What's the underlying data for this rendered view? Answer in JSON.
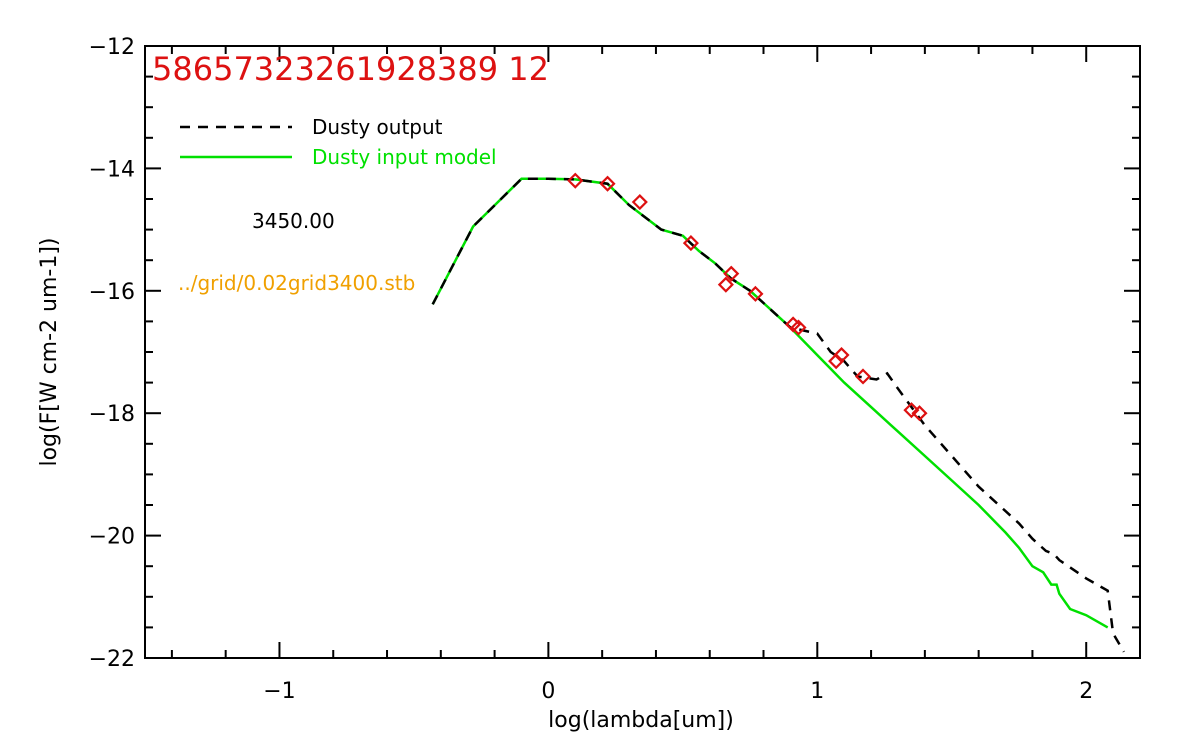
{
  "chart_data": {
    "type": "line",
    "title": "58657323261928389 12",
    "xlabel": "log(lambda[um])",
    "ylabel": "log(F[W cm-2 um-1])",
    "xlim": [
      -1.5,
      2.2
    ],
    "ylim": [
      -22,
      -12
    ],
    "xticks": [
      -1,
      0,
      1,
      2
    ],
    "yticks": [
      -22,
      -20,
      -18,
      -16,
      -14,
      -12
    ],
    "x_tick_labels": [
      "−1",
      "0",
      "1",
      "2"
    ],
    "y_tick_labels": [
      "−22",
      "−20",
      "−18",
      "−16",
      "−14",
      "−12"
    ],
    "colors": {
      "dusty_output": "#000000",
      "dusty_input": "#00e000",
      "observed": "#dd1111",
      "id_text": "#dd1111",
      "file_text": "#f0a000",
      "temp_text": "#000000"
    },
    "series": [
      {
        "name": "Dusty output",
        "style": "dashed",
        "color": "#000000",
        "x": [
          -0.43,
          -0.28,
          -0.1,
          0.0,
          0.1,
          0.22,
          0.3,
          0.42,
          0.5,
          0.56,
          0.62,
          0.68,
          0.75,
          0.8,
          0.85,
          0.9,
          1.0,
          1.05,
          1.1,
          1.15,
          1.22,
          1.26,
          1.3,
          1.4,
          1.5,
          1.6,
          1.7,
          1.75,
          1.8,
          1.85,
          1.88,
          1.9,
          2.0,
          2.08,
          2.1,
          2.14
        ],
        "y": [
          -16.22,
          -14.95,
          -14.17,
          -14.17,
          -14.18,
          -14.25,
          -14.6,
          -15.0,
          -15.1,
          -15.35,
          -15.55,
          -15.8,
          -16.0,
          -16.2,
          -16.4,
          -16.6,
          -16.7,
          -17.0,
          -17.15,
          -17.4,
          -17.45,
          -17.35,
          -17.6,
          -18.2,
          -18.7,
          -19.2,
          -19.6,
          -19.8,
          -20.05,
          -20.25,
          -20.3,
          -20.4,
          -20.7,
          -20.9,
          -21.6,
          -21.9
        ]
      },
      {
        "name": "Dusty input model",
        "style": "solid",
        "color": "#00e000",
        "x": [
          -0.43,
          -0.28,
          -0.1,
          0.0,
          0.1,
          0.22,
          0.3,
          0.42,
          0.5,
          0.56,
          0.62,
          0.68,
          0.75,
          0.8,
          0.85,
          0.9,
          1.0,
          1.1,
          1.2,
          1.3,
          1.4,
          1.5,
          1.6,
          1.7,
          1.75,
          1.8,
          1.84,
          1.87,
          1.89,
          1.9,
          1.94,
          2.0,
          2.08
        ],
        "y": [
          -16.22,
          -14.95,
          -14.17,
          -14.17,
          -14.18,
          -14.25,
          -14.6,
          -15.0,
          -15.1,
          -15.35,
          -15.55,
          -15.8,
          -16.0,
          -16.2,
          -16.4,
          -16.6,
          -17.05,
          -17.5,
          -17.9,
          -18.3,
          -18.7,
          -19.1,
          -19.5,
          -19.95,
          -20.2,
          -20.5,
          -20.6,
          -20.8,
          -20.8,
          -20.95,
          -21.2,
          -21.3,
          -21.5
        ]
      },
      {
        "name": "observed",
        "style": "diamond",
        "color": "#dd1111",
        "x": [
          0.1,
          0.22,
          0.34,
          0.53,
          0.66,
          0.68,
          0.77,
          0.91,
          0.93,
          1.07,
          1.09,
          1.17,
          1.35,
          1.38
        ],
        "y": [
          -14.2,
          -14.25,
          -14.55,
          -15.22,
          -15.9,
          -15.72,
          -16.05,
          -16.55,
          -16.6,
          -17.15,
          -17.05,
          -17.4,
          -17.95,
          -18.0
        ]
      }
    ],
    "legend": {
      "placement": "top-left",
      "entries": [
        "Dusty output",
        "Dusty input model"
      ]
    },
    "annotations": {
      "id_number": "58657323261928389 12",
      "temperature": "3450.00",
      "file": "../grid/0.02grid3400.stb"
    }
  }
}
